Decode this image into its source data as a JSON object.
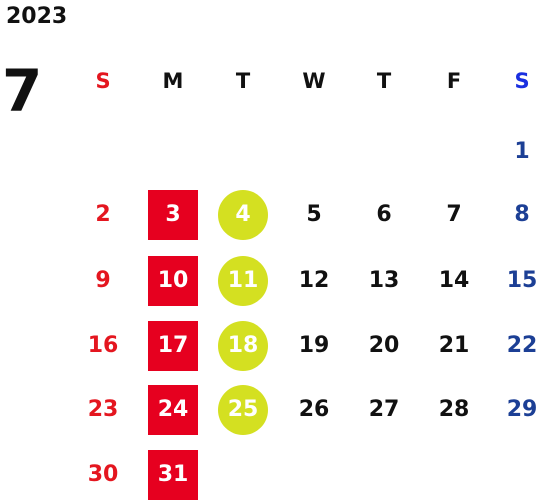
{
  "year": "2023",
  "month": "7",
  "weekdays": [
    "S",
    "M",
    "T",
    "W",
    "T",
    "F",
    "S"
  ],
  "weeks": [
    [
      "",
      "",
      "",
      "",
      "",
      "",
      "1"
    ],
    [
      "2",
      "3",
      "4",
      "5",
      "6",
      "7",
      "8"
    ],
    [
      "9",
      "10",
      "11",
      "12",
      "13",
      "14",
      "15"
    ],
    [
      "16",
      "17",
      "18",
      "19",
      "20",
      "21",
      "22"
    ],
    [
      "23",
      "24",
      "25",
      "26",
      "27",
      "28",
      "29"
    ],
    [
      "30",
      "31",
      "",
      "",
      "",
      "",
      ""
    ]
  ],
  "colors": {
    "sunday_text": "#e4161f",
    "saturday_text": "#1c3f95",
    "saturday_header": "#1a2fe0",
    "monday_highlight_box": "#e6001f",
    "tuesday_highlight_circle": "#d4e021",
    "default_text": "#111111"
  }
}
